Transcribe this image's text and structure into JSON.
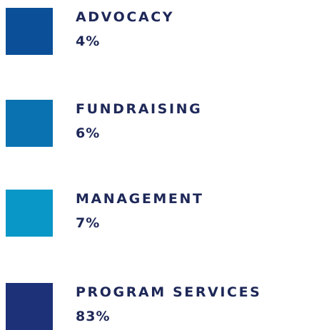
{
  "legend": {
    "items": [
      {
        "label": "ADVOCACY",
        "value": "4%",
        "color": "#0a4f98"
      },
      {
        "label": "FUNDRAISING",
        "value": "6%",
        "color": "#0a72b0"
      },
      {
        "label": "MANAGEMENT",
        "value": "7%",
        "color": "#0897c7"
      },
      {
        "label": "PROGRAM SERVICES",
        "value": "83%",
        "color": "#1c3178"
      }
    ]
  }
}
